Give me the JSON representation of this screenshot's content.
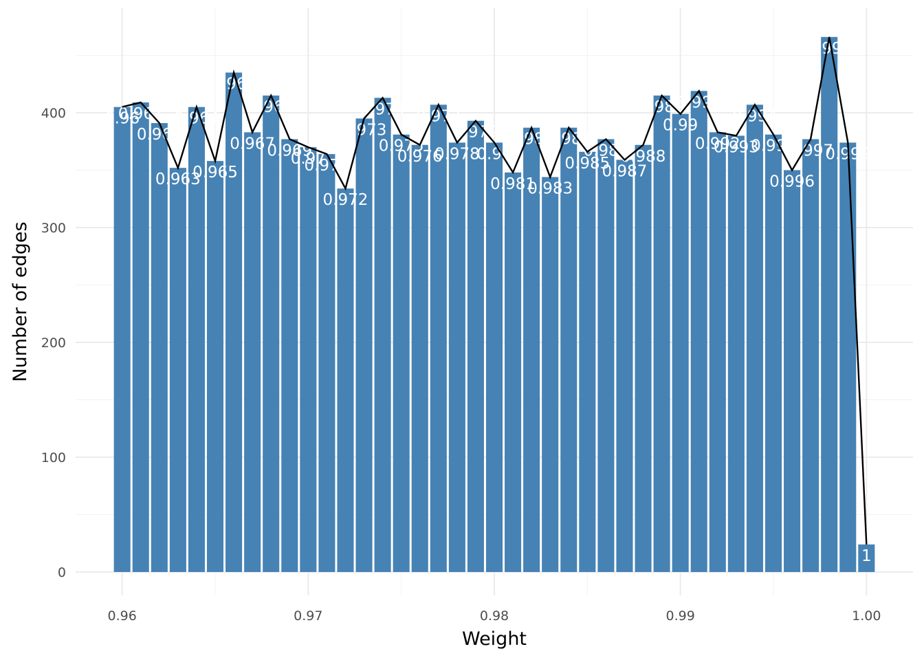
{
  "chart_data": {
    "type": "bar",
    "xlabel": "Weight",
    "ylabel": "Number of edges",
    "xlim": [
      0.9575,
      1.0025
    ],
    "ylim": [
      0,
      470
    ],
    "grid": true,
    "legend": "none",
    "bar_color": "#4682b4",
    "line_color": "#000000",
    "x_ticks": [
      {
        "value": 0.96,
        "label": "0.96"
      },
      {
        "value": 0.97,
        "label": "0.97"
      },
      {
        "value": 0.98,
        "label": "0.98"
      },
      {
        "value": 0.99,
        "label": "0.99"
      },
      {
        "value": 1.0,
        "label": "1.00"
      }
    ],
    "y_ticks": [
      {
        "value": 0,
        "label": "0"
      },
      {
        "value": 100,
        "label": "100"
      },
      {
        "value": 200,
        "label": "200"
      },
      {
        "value": 300,
        "label": "300"
      },
      {
        "value": 400,
        "label": "400"
      }
    ],
    "bin_width": 0.001,
    "bars": [
      {
        "x": 0.96,
        "count": 405,
        "label": "0.96"
      },
      {
        "x": 0.961,
        "count": 409,
        "label": "0.961"
      },
      {
        "x": 0.962,
        "count": 391,
        "label": "0.962"
      },
      {
        "x": 0.963,
        "count": 352,
        "label": "0.963"
      },
      {
        "x": 0.964,
        "count": 405,
        "label": "0.964"
      },
      {
        "x": 0.965,
        "count": 358,
        "label": "0.965"
      },
      {
        "x": 0.966,
        "count": 435,
        "label": "0.966"
      },
      {
        "x": 0.967,
        "count": 383,
        "label": "0.967"
      },
      {
        "x": 0.968,
        "count": 415,
        "label": "0.968"
      },
      {
        "x": 0.969,
        "count": 377,
        "label": "0.969"
      },
      {
        "x": 0.97,
        "count": 370,
        "label": "0.97"
      },
      {
        "x": 0.971,
        "count": 364,
        "label": "0.971"
      },
      {
        "x": 0.972,
        "count": 334,
        "label": "0.972"
      },
      {
        "x": 0.973,
        "count": 395,
        "label": "0.973"
      },
      {
        "x": 0.974,
        "count": 413,
        "label": "0.974"
      },
      {
        "x": 0.975,
        "count": 381,
        "label": "0.975"
      },
      {
        "x": 0.976,
        "count": 372,
        "label": "0.976"
      },
      {
        "x": 0.977,
        "count": 407,
        "label": "0.977"
      },
      {
        "x": 0.978,
        "count": 374,
        "label": "0.978"
      },
      {
        "x": 0.979,
        "count": 393,
        "label": "0.979"
      },
      {
        "x": 0.98,
        "count": 374,
        "label": "0.98"
      },
      {
        "x": 0.981,
        "count": 348,
        "label": "0.981"
      },
      {
        "x": 0.982,
        "count": 387,
        "label": "0.982"
      },
      {
        "x": 0.983,
        "count": 344,
        "label": "0.983"
      },
      {
        "x": 0.984,
        "count": 387,
        "label": "0.984"
      },
      {
        "x": 0.985,
        "count": 366,
        "label": "0.985"
      },
      {
        "x": 0.986,
        "count": 377,
        "label": "0.986"
      },
      {
        "x": 0.987,
        "count": 359,
        "label": "0.987"
      },
      {
        "x": 0.988,
        "count": 372,
        "label": "0.988"
      },
      {
        "x": 0.989,
        "count": 415,
        "label": "0.989"
      },
      {
        "x": 0.99,
        "count": 399,
        "label": "0.99"
      },
      {
        "x": 0.991,
        "count": 419,
        "label": "0.991"
      },
      {
        "x": 0.992,
        "count": 383,
        "label": "0.992"
      },
      {
        "x": 0.993,
        "count": 380,
        "label": "0.993"
      },
      {
        "x": 0.994,
        "count": 407,
        "label": "0.994"
      },
      {
        "x": 0.995,
        "count": 381,
        "label": "0.995"
      },
      {
        "x": 0.996,
        "count": 350,
        "label": "0.996"
      },
      {
        "x": 0.997,
        "count": 377,
        "label": "0.997"
      },
      {
        "x": 0.998,
        "count": 466,
        "label": "0.998"
      },
      {
        "x": 0.999,
        "count": 374,
        "label": "0.999"
      },
      {
        "x": 1.0,
        "count": 24,
        "label": "1"
      }
    ]
  }
}
